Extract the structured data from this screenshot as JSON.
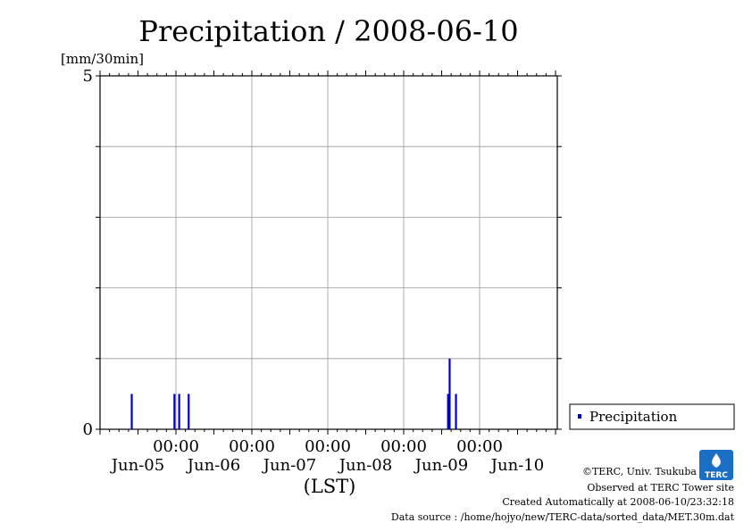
{
  "chart_data": {
    "type": "bar",
    "title": "Precipitation / 2008-06-10",
    "ylabel": "[mm/30min]",
    "xlabel": "(LST)",
    "ylim": [
      0,
      5
    ],
    "yticks": [
      0,
      1,
      2,
      3,
      4,
      5
    ],
    "ytick_labels": [
      "0",
      "5"
    ],
    "x_range_hours": [
      0,
      144
    ],
    "x_major_ticks": [
      {
        "time": "00:00",
        "date": "Jun-05"
      },
      {
        "time": "00:00",
        "date": "Jun-06"
      },
      {
        "time": "00:00",
        "date": "Jun-07"
      },
      {
        "time": "00:00",
        "date": "Jun-08"
      },
      {
        "time": "00:00",
        "date": "Jun-09"
      },
      {
        "time": "",
        "date": "Jun-10"
      }
    ],
    "grid": true,
    "legend_position": "right",
    "series": [
      {
        "name": "Precipitation",
        "color": "#0000cc",
        "points": [
          {
            "x": "2008-06-05 10:00",
            "y": 0.5
          },
          {
            "x": "2008-06-05 23:30",
            "y": 0.5
          },
          {
            "x": "2008-06-06 01:00",
            "y": 0.5
          },
          {
            "x": "2008-06-06 04:00",
            "y": 0.5
          },
          {
            "x": "2008-06-09 14:00",
            "y": 0.5
          },
          {
            "x": "2008-06-09 14:30",
            "y": 1.0
          },
          {
            "x": "2008-06-09 16:30",
            "y": 0.5
          }
        ]
      }
    ]
  },
  "credits": {
    "copyright": "©TERC, Univ. Tsukuba",
    "site": "Observed at TERC Tower site",
    "created": "Created Automatically at 2008-06-10/23:32:18",
    "source": "Data source : /home/hojyo/new/TERC-data/sorted_data/MET.30m.dat"
  },
  "logo": {
    "text": "TERC",
    "color": "#1a6fc4"
  }
}
